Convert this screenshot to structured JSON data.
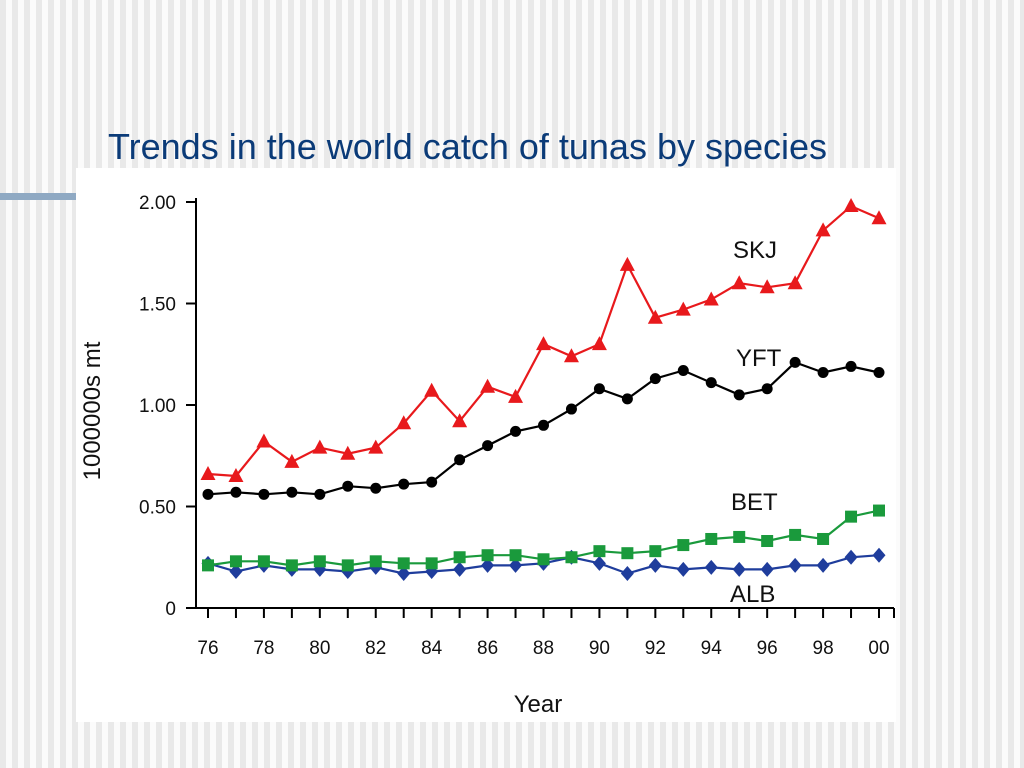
{
  "slide": {
    "title": "Trends in the world catch of tunas by species"
  },
  "chart_data": {
    "type": "line",
    "title": "",
    "xlabel": "Year",
    "ylabel": "1000000s mt",
    "x": [
      1976,
      1977,
      1978,
      1979,
      1980,
      1981,
      1982,
      1983,
      1984,
      1985,
      1986,
      1987,
      1988,
      1989,
      1990,
      1991,
      1992,
      1993,
      1994,
      1995,
      1996,
      1997,
      1998,
      1999,
      2000
    ],
    "xticks": [
      1976,
      1978,
      1980,
      1982,
      1984,
      1986,
      1988,
      1990,
      1992,
      1994,
      1996,
      1998,
      2000
    ],
    "xtick_labels": [
      "76",
      "78",
      "80",
      "82",
      "84",
      "86",
      "88",
      "90",
      "92",
      "94",
      "96",
      "98",
      "00"
    ],
    "xlim": [
      1976,
      2000
    ],
    "yticks": [
      0,
      0.5,
      1.0,
      1.5,
      2.0
    ],
    "ytick_labels": [
      "0",
      "0.50",
      "1.00",
      "1.50",
      "2.00"
    ],
    "ylim": [
      0,
      2.0
    ],
    "grid": false,
    "legend": "none",
    "series": [
      {
        "name": "SKJ",
        "color": "#e8191c",
        "marker": "triangle",
        "values": [
          0.66,
          0.65,
          0.82,
          0.72,
          0.79,
          0.76,
          0.79,
          0.91,
          1.07,
          0.92,
          1.09,
          1.04,
          1.3,
          1.24,
          1.3,
          1.69,
          1.43,
          1.47,
          1.52,
          1.6,
          1.58,
          1.6,
          1.86,
          1.98,
          1.92
        ]
      },
      {
        "name": "YFT",
        "color": "#000000",
        "marker": "circle",
        "values": [
          0.56,
          0.57,
          0.56,
          0.57,
          0.56,
          0.6,
          0.59,
          0.61,
          0.62,
          0.73,
          0.8,
          0.87,
          0.9,
          0.98,
          1.08,
          1.03,
          1.13,
          1.17,
          1.11,
          1.05,
          1.08,
          1.21,
          1.16,
          1.19,
          1.16
        ]
      },
      {
        "name": "BET",
        "color": "#1a9a3c",
        "marker": "square",
        "values": [
          0.21,
          0.23,
          0.23,
          0.21,
          0.23,
          0.21,
          0.23,
          0.22,
          0.22,
          0.25,
          0.26,
          0.26,
          0.24,
          0.25,
          0.28,
          0.27,
          0.28,
          0.31,
          0.34,
          0.35,
          0.33,
          0.36,
          0.34,
          0.45,
          0.48
        ]
      },
      {
        "name": "ALB",
        "color": "#1f3d9c",
        "marker": "diamond",
        "values": [
          0.22,
          0.18,
          0.21,
          0.19,
          0.19,
          0.18,
          0.2,
          0.17,
          0.18,
          0.19,
          0.21,
          0.21,
          0.22,
          0.25,
          0.22,
          0.17,
          0.21,
          0.19,
          0.2,
          0.19,
          0.19,
          0.21,
          0.21,
          0.25,
          0.26
        ]
      }
    ],
    "annotations": [
      "SKJ",
      "YFT",
      "BET",
      "ALB"
    ]
  }
}
